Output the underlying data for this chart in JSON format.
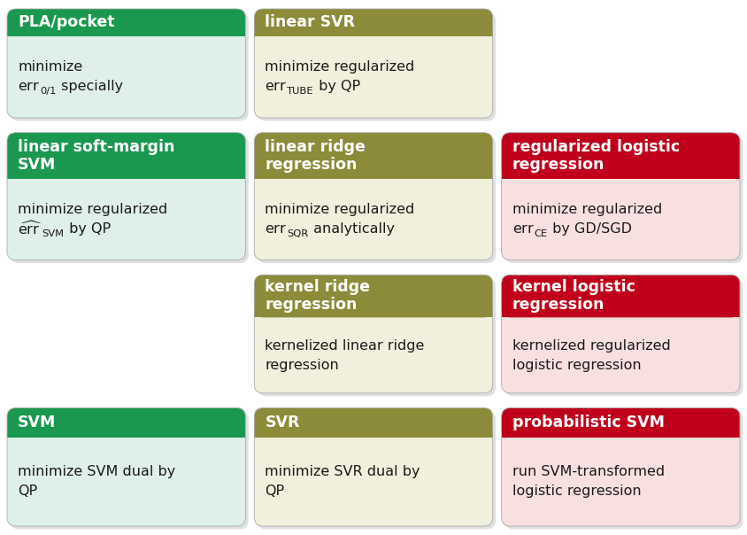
{
  "cards": [
    {
      "row": 0,
      "col": 0,
      "header_text": "PLA/pocket",
      "header_color": "#1a9850",
      "body_bg": "#dff0e8",
      "body_lines": [
        "minimize",
        null
      ],
      "body_special": {
        "line_idx": 1,
        "sub": "0/1",
        "suffix": " specially",
        "hat": false
      }
    },
    {
      "row": 0,
      "col": 1,
      "header_text": "linear SVR",
      "header_color": "#8b8b3a",
      "body_bg": "#f0f0dc",
      "body_lines": [
        "minimize regularized",
        null
      ],
      "body_special": {
        "line_idx": 1,
        "sub": "TUBE",
        "suffix": " by QP",
        "hat": false
      }
    },
    {
      "row": 1,
      "col": 0,
      "header_text": "linear soft-margin\nSVM",
      "header_color": "#1a9850",
      "body_bg": "#dff0e8",
      "body_lines": [
        "minimize regularized",
        null
      ],
      "body_special": {
        "line_idx": 1,
        "sub": "SVM",
        "suffix": " by QP",
        "hat": true
      }
    },
    {
      "row": 1,
      "col": 1,
      "header_text": "linear ridge\nregression",
      "header_color": "#8b8b3a",
      "body_bg": "#f0f0dc",
      "body_lines": [
        "minimize regularized",
        null
      ],
      "body_special": {
        "line_idx": 1,
        "sub": "SQR",
        "suffix": " analytically",
        "hat": false
      }
    },
    {
      "row": 1,
      "col": 2,
      "header_text": "regularized logistic\nregression",
      "header_color": "#c0001a",
      "body_bg": "#f8e0e0",
      "body_lines": [
        "minimize regularized",
        null
      ],
      "body_special": {
        "line_idx": 1,
        "sub": "CE",
        "suffix": " by GD/SGD",
        "hat": false
      }
    },
    {
      "row": 2,
      "col": 1,
      "header_text": "kernel ridge\nregression",
      "header_color": "#8b8b3a",
      "body_bg": "#f0f0dc",
      "body_lines": [
        "kernelized linear ridge",
        "regression"
      ]
    },
    {
      "row": 2,
      "col": 2,
      "header_text": "kernel logistic\nregression",
      "header_color": "#c0001a",
      "body_bg": "#f8e0e0",
      "body_lines": [
        "kernelized regularized",
        "logistic regression"
      ]
    },
    {
      "row": 3,
      "col": 0,
      "header_text": "SVM",
      "header_color": "#1a9850",
      "body_bg": "#dff0e8",
      "body_lines": [
        "minimize SVM dual by",
        "QP"
      ]
    },
    {
      "row": 3,
      "col": 1,
      "header_text": "SVR",
      "header_color": "#8b8b3a",
      "body_bg": "#f0f0dc",
      "body_lines": [
        "minimize SVR dual by",
        "QP"
      ]
    },
    {
      "row": 3,
      "col": 2,
      "header_text": "probabilistic SVM",
      "header_color": "#c0001a",
      "body_bg": "#f8e0e0",
      "body_lines": [
        "run SVM-transformed",
        "logistic regression"
      ]
    }
  ],
  "header_fontsize": 12.5,
  "body_fontsize": 11.5,
  "header_text_color": "#ffffff",
  "body_text_color": "#1a1a1a",
  "figure_bg": "#ffffff",
  "shadow_color": "#bbbbbb"
}
